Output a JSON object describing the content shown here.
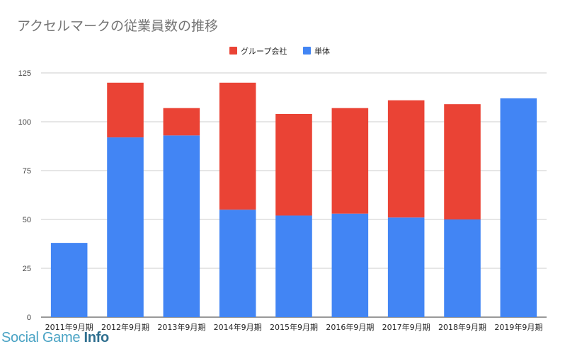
{
  "chart_data": {
    "type": "bar",
    "stacked": true,
    "title": "アクセルマークの従業員数の推移",
    "categories": [
      "2011年9月期",
      "2012年9月期",
      "2013年9月期",
      "2014年9月期",
      "2015年9月期",
      "2016年9月期",
      "2017年9月期",
      "2018年9月期",
      "2019年9月期"
    ],
    "series": [
      {
        "name": "単体",
        "color": "#4285f4",
        "values": [
          38,
          92,
          93,
          55,
          52,
          53,
          51,
          50,
          112
        ]
      },
      {
        "name": "グループ会社",
        "color": "#ea4335",
        "values": [
          0,
          28,
          14,
          65,
          52,
          54,
          60,
          59,
          0
        ]
      }
    ],
    "legend_order": [
      "グループ会社",
      "単体"
    ],
    "legend_position": "top",
    "ylim": [
      0,
      125
    ],
    "yticks": [
      0,
      25,
      50,
      75,
      100,
      125
    ],
    "grid": true
  },
  "watermark": {
    "light": "Social Game ",
    "bold": "Info"
  }
}
